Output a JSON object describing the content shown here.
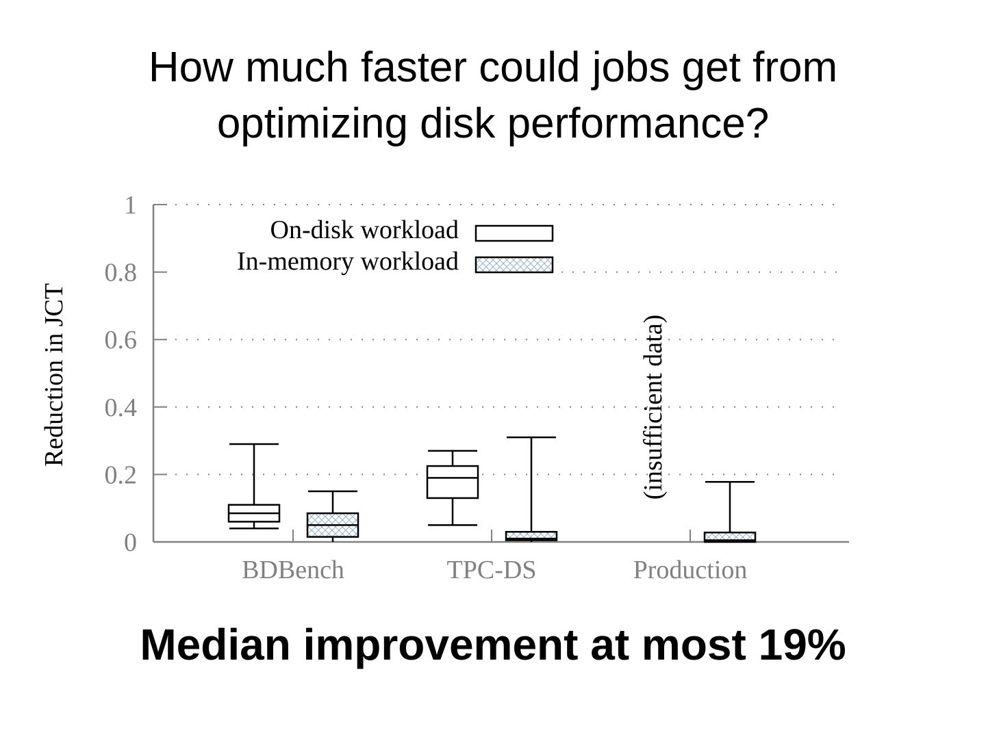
{
  "slide": {
    "title_line1": "How much faster could jobs get from",
    "title_line2": "optimizing disk performance?",
    "footer": "Median improvement at most 19%"
  },
  "colors": {
    "grid": "#808080",
    "axis": "#808080",
    "box_stroke": "#000000",
    "on_disk_fill": "#ffffff",
    "in_memory_hatch": "#8fb3c9"
  },
  "chart_data": {
    "type": "box",
    "ylabel": "Reduction in JCT",
    "ylim": [
      0,
      1
    ],
    "yticks": [
      "0",
      "0.2",
      "0.4",
      "0.6",
      "0.8",
      "1"
    ],
    "ytick_values": [
      0,
      0.2,
      0.4,
      0.6,
      0.8,
      1
    ],
    "grid": true,
    "legend_position": "top-left",
    "categories": [
      "BDBench",
      "TPC-DS",
      "Production"
    ],
    "series": [
      {
        "name": "On-disk workload",
        "style": "plain",
        "boxes": [
          {
            "category": "BDBench",
            "min": 0.04,
            "q1": 0.06,
            "median": 0.085,
            "q3": 0.11,
            "max": 0.29
          },
          {
            "category": "TPC-DS",
            "min": 0.05,
            "q1": 0.13,
            "median": 0.19,
            "q3": 0.225,
            "max": 0.27
          },
          null
        ]
      },
      {
        "name": "In-memory workload",
        "style": "hatched",
        "boxes": [
          {
            "category": "BDBench",
            "min": 0.0,
            "q1": 0.015,
            "median": 0.05,
            "q3": 0.085,
            "max": 0.15
          },
          {
            "category": "TPC-DS",
            "min": 0.0,
            "q1": 0.005,
            "median": 0.01,
            "q3": 0.03,
            "max": 0.31
          },
          {
            "category": "Production",
            "min": 0.0,
            "q1": 0.0,
            "median": 0.005,
            "q3": 0.028,
            "max": 0.178
          }
        ]
      }
    ],
    "annotations": [
      {
        "text": "(insufficient data)",
        "category": "Production",
        "series": "On-disk workload"
      }
    ]
  }
}
